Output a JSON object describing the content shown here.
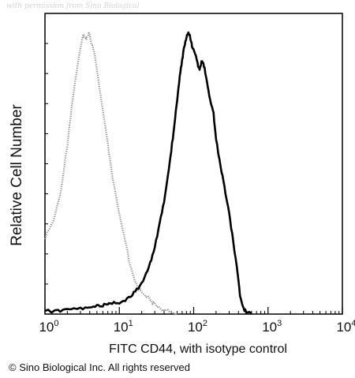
{
  "watermark": "with permission from Sino Biological",
  "copyright": "© Sino Biological Inc. All rights reserved",
  "chart_data": {
    "type": "line",
    "xlabel": "FITC CD44, with isotype control",
    "ylabel": "Relative Cell Number",
    "xscale": "log",
    "xlim": [
      1,
      10000
    ],
    "ylim": [
      0,
      1
    ],
    "xticks": [
      {
        "base": "10",
        "exp": "0",
        "value": 1
      },
      {
        "base": "10",
        "exp": "1",
        "value": 10
      },
      {
        "base": "10",
        "exp": "2",
        "value": 100
      },
      {
        "base": "10",
        "exp": "3",
        "value": 1000
      },
      {
        "base": "10",
        "exp": "4",
        "value": 10000
      }
    ],
    "grid": false,
    "legend": "none",
    "series": [
      {
        "style": "dotted",
        "color": "#8c8c8c",
        "x": [
          1.0,
          1.3,
          1.6,
          2.0,
          2.3,
          2.7,
          3.0,
          3.3,
          3.6,
          3.9,
          4.2,
          4.6,
          5.0,
          5.5,
          6.0,
          7.0,
          8.0,
          9.0,
          10.0,
          12.0,
          14.0,
          16.0,
          18.0,
          20.0,
          24.0,
          28.0,
          32.0,
          38.0,
          45.0,
          55.0,
          60.0
        ],
        "y": [
          0.27,
          0.33,
          0.42,
          0.6,
          0.74,
          0.87,
          0.94,
          0.99,
          0.97,
          1.0,
          0.96,
          0.93,
          0.86,
          0.79,
          0.72,
          0.6,
          0.49,
          0.42,
          0.35,
          0.26,
          0.17,
          0.12,
          0.09,
          0.08,
          0.06,
          0.04,
          0.03,
          0.015,
          0.01,
          0.004,
          0.0
        ]
      },
      {
        "style": "solid",
        "color": "#000000",
        "x": [
          1.0,
          1.5,
          2.0,
          3.0,
          4.0,
          5.0,
          6.0,
          7.0,
          8.0,
          10.0,
          12.0,
          15.0,
          18.0,
          22.0,
          26.0,
          30.0,
          35.0,
          40.0,
          45.0,
          50.0,
          55.0,
          60.0,
          65.0,
          70.0,
          75.0,
          80.0,
          85.0,
          90.0,
          95.0,
          100.0,
          110.0,
          120.0,
          130.0,
          140.0,
          155.0,
          170.0,
          185.0,
          200.0,
          230.0,
          260.0,
          290.0,
          330.0,
          380.0,
          420.0,
          470.0,
          520.0,
          600.0
        ],
        "y": [
          0.01,
          0.01,
          0.015,
          0.02,
          0.02,
          0.03,
          0.03,
          0.035,
          0.04,
          0.04,
          0.05,
          0.07,
          0.09,
          0.13,
          0.18,
          0.24,
          0.32,
          0.4,
          0.49,
          0.58,
          0.67,
          0.76,
          0.84,
          0.9,
          0.95,
          0.98,
          1.0,
          0.98,
          0.95,
          0.94,
          0.9,
          0.86,
          0.9,
          0.87,
          0.8,
          0.75,
          0.71,
          0.62,
          0.52,
          0.45,
          0.38,
          0.28,
          0.17,
          0.07,
          0.02,
          0.005,
          0.0
        ]
      }
    ]
  }
}
